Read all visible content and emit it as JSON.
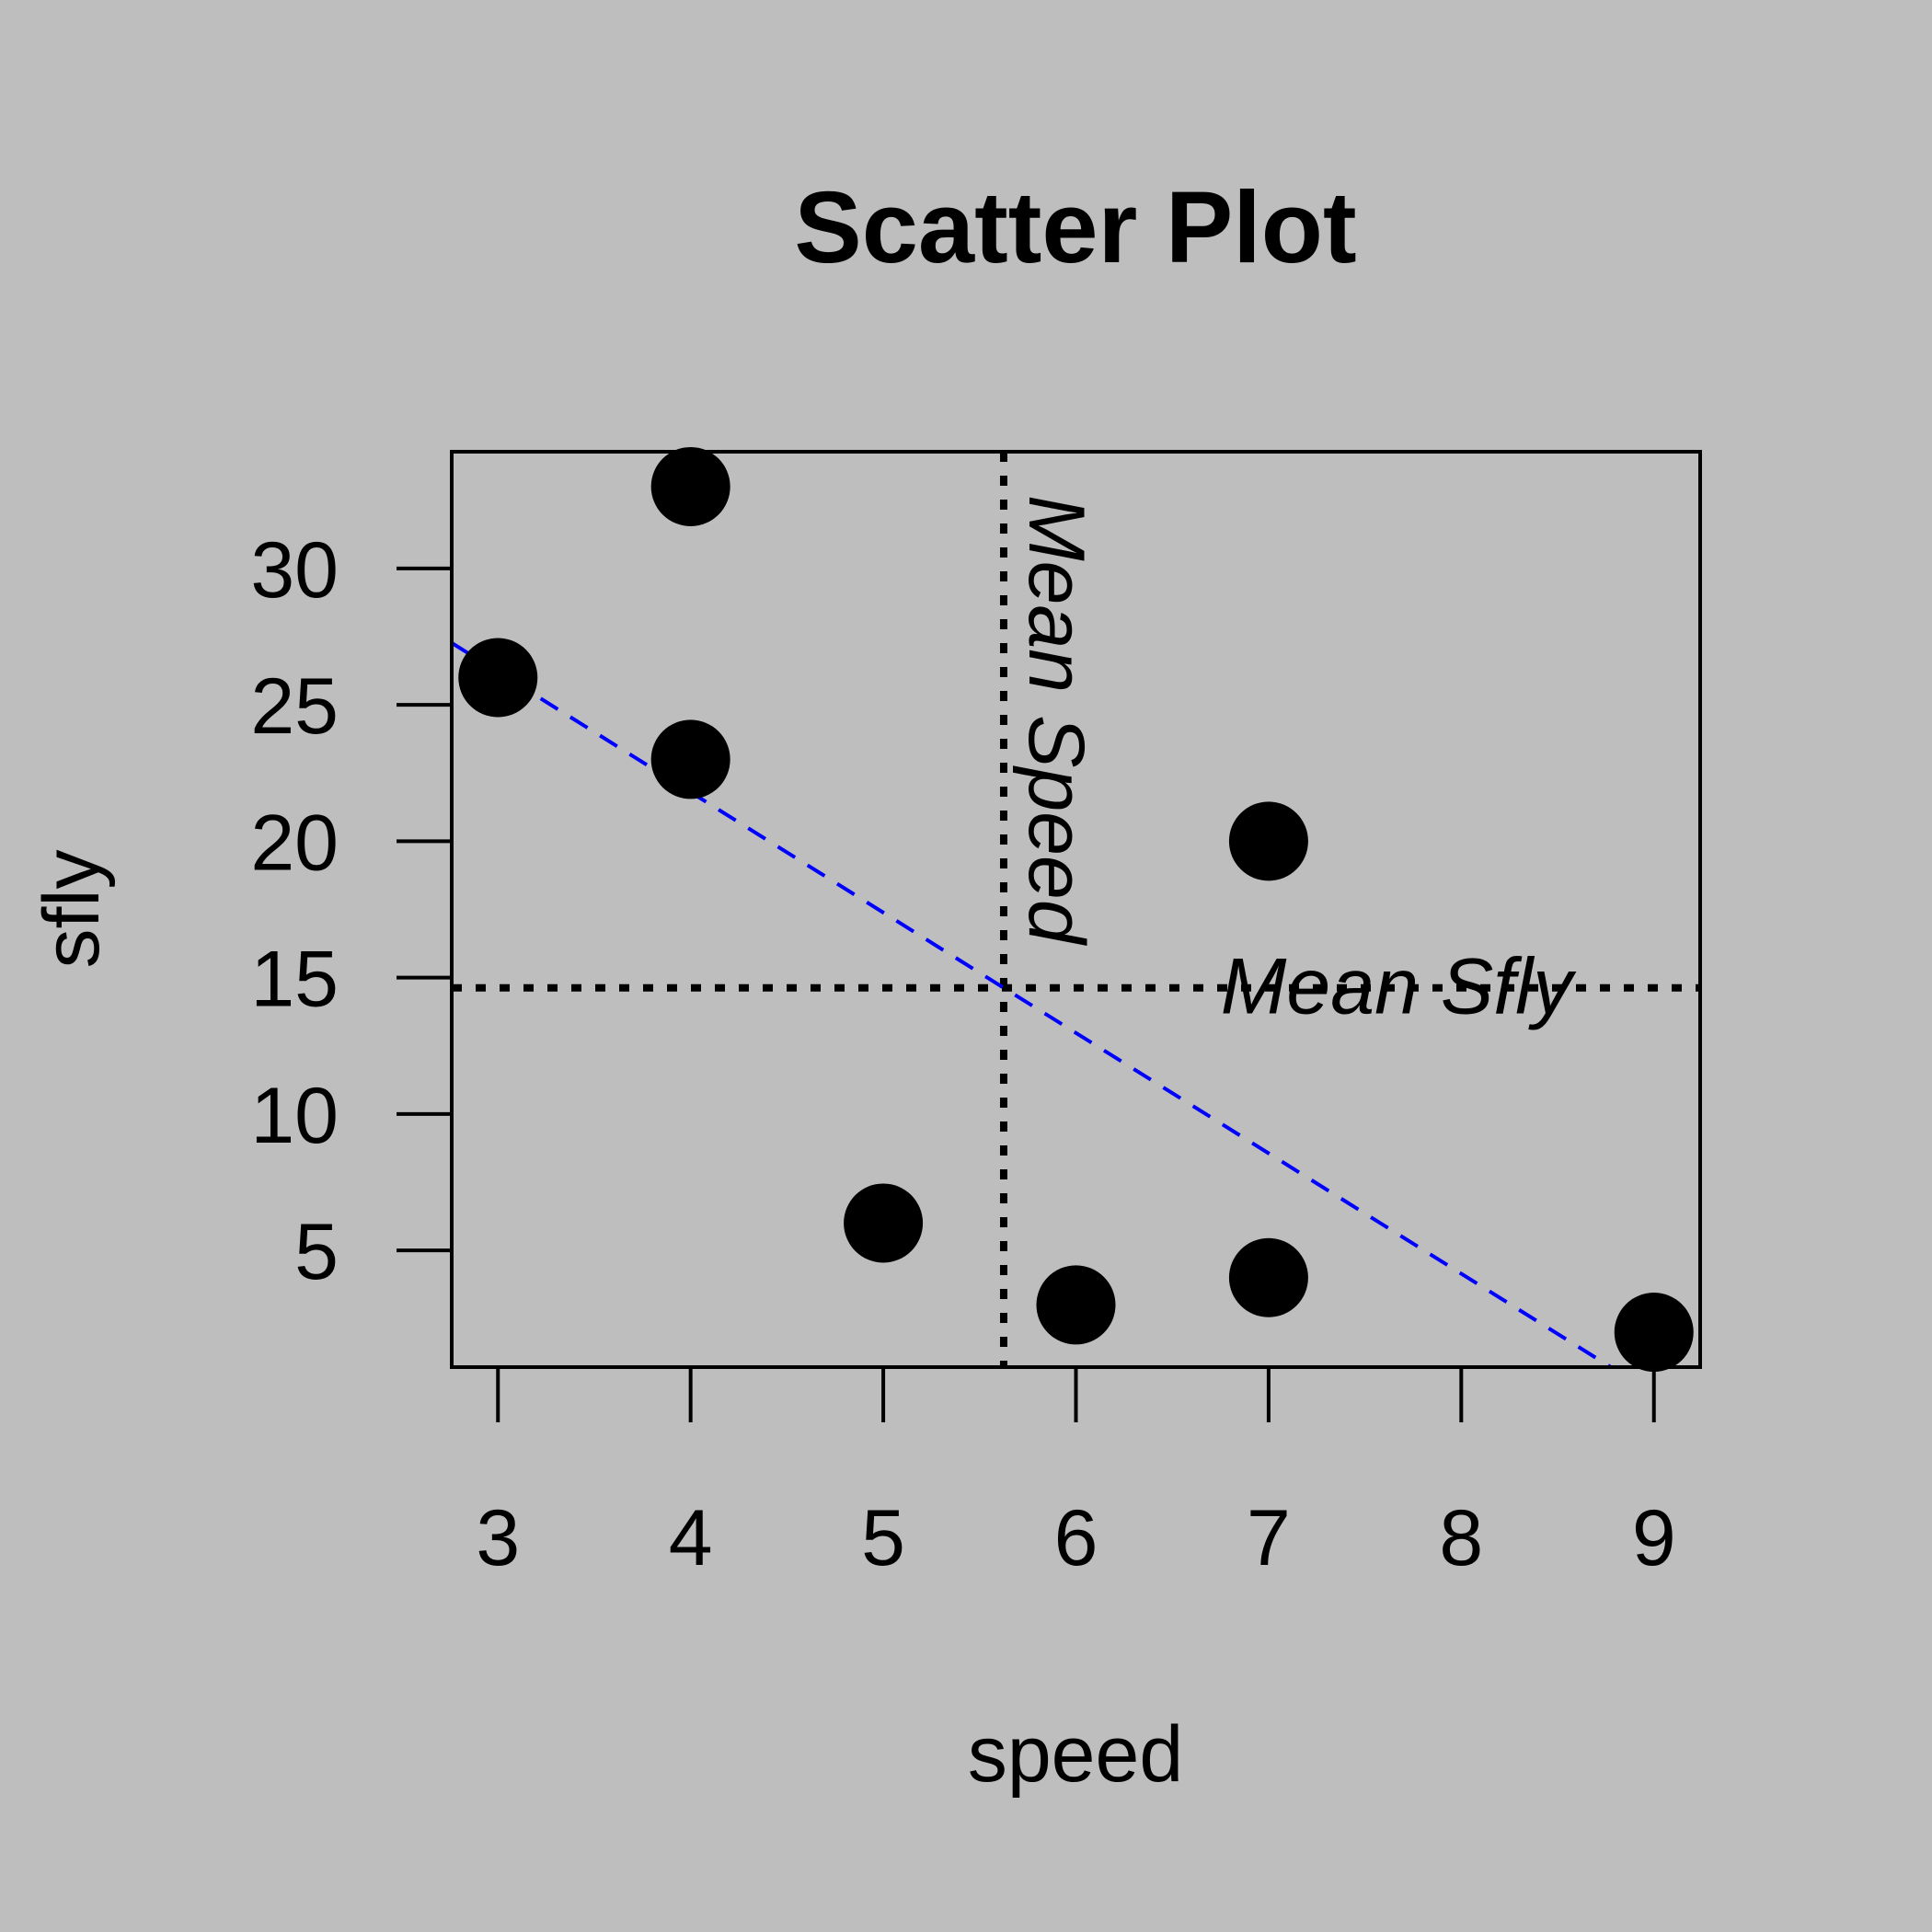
{
  "chart_data": {
    "type": "scatter",
    "title": "Scatter Plot",
    "xlabel": "speed",
    "ylabel": "sfly",
    "xlim": [
      2.76,
      9.24
    ],
    "ylim": [
      0.72,
      34.28
    ],
    "x_ticks": [
      3,
      4,
      5,
      6,
      7,
      8,
      9
    ],
    "y_ticks": [
      5,
      10,
      15,
      20,
      25,
      30
    ],
    "points": [
      {
        "x": 3,
        "y": 26
      },
      {
        "x": 4,
        "y": 33
      },
      {
        "x": 4,
        "y": 23
      },
      {
        "x": 5,
        "y": 6
      },
      {
        "x": 6,
        "y": 3
      },
      {
        "x": 7,
        "y": 20
      },
      {
        "x": 7,
        "y": 4
      },
      {
        "x": 9,
        "y": 2
      }
    ],
    "reference_lines": [
      {
        "orientation": "vertical",
        "value": 5.625,
        "label": "Mean Speed",
        "style": "dotted",
        "color": "#000000"
      },
      {
        "orientation": "horizontal",
        "value": 14.625,
        "label": "Mean Sfly",
        "style": "dotted",
        "color": "#000000"
      }
    ],
    "regression_line": {
      "intercept": 39.45,
      "slope": -4.413,
      "style": "dashed",
      "color": "#0000ff"
    },
    "grid": false,
    "legend": "none",
    "point_color": "#000000",
    "background": "#bebebe"
  }
}
